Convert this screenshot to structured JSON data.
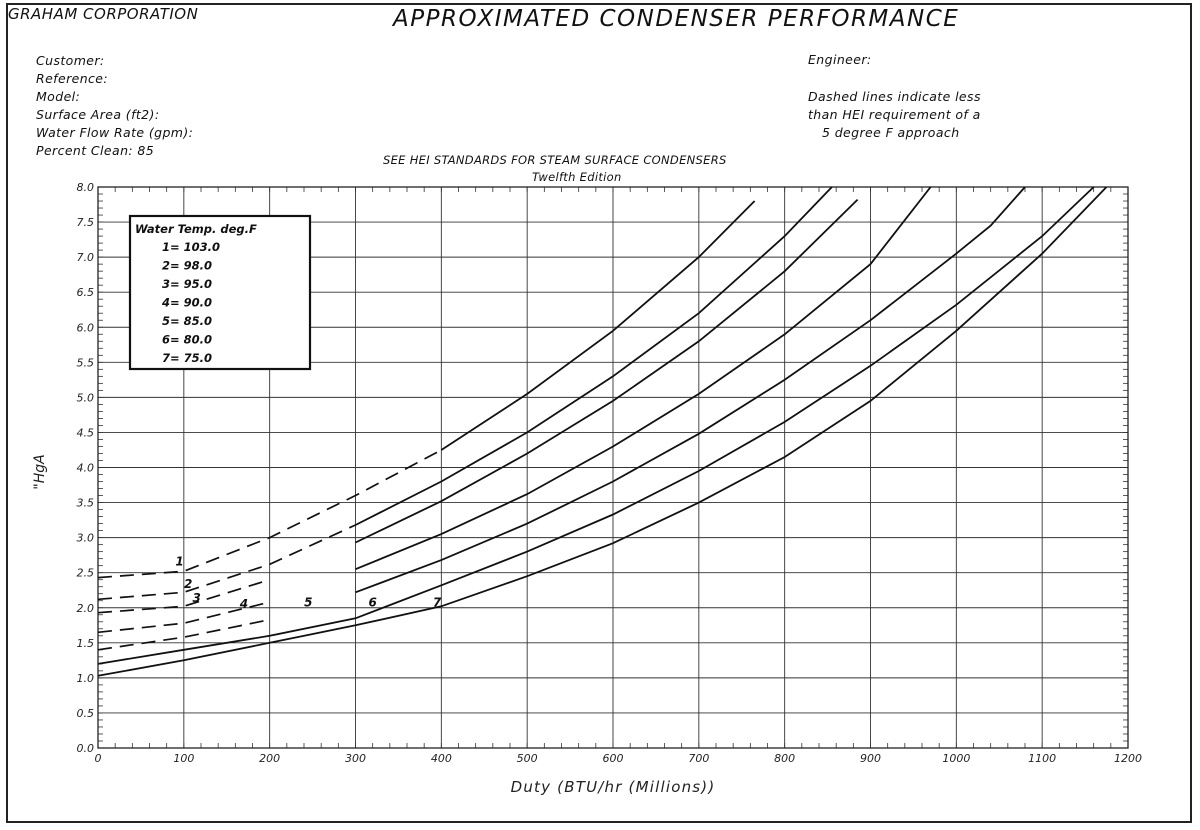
{
  "header": {
    "company": "GRAHAM CORPORATION",
    "title": "APPROXIMATED CONDENSER PERFORMANCE",
    "info_left": [
      "Customer:",
      "Reference:",
      "Model:",
      "Surface Area (ft2):",
      "Water Flow Rate (gpm):",
      "Percent Clean: 85"
    ],
    "engineer": "Engineer:",
    "note_lines": [
      "Dashed lines indicate less",
      "than HEI requirement of a",
      "5 degree F approach"
    ],
    "hei_line1": "SEE HEI STANDARDS FOR STEAM SURFACE CONDENSERS",
    "hei_line2": "Twelfth Edition"
  },
  "chart_data": {
    "type": "line",
    "title": "APPROXIMATED CONDENSER PERFORMANCE",
    "subtitle": "SEE HEI STANDARDS FOR STEAM SURFACE CONDENSERS Twelfth Edition",
    "xlabel": "Duty (BTU/hr (Millions))",
    "ylabel": "\"HgA",
    "xlim": [
      0,
      1200
    ],
    "ylim": [
      0,
      8
    ],
    "x_ticks": [
      "0",
      "100",
      "200",
      "300",
      "400",
      "500",
      "600",
      "700",
      "800",
      "900",
      "1000",
      "1100",
      "1200"
    ],
    "y_ticks": [
      "0.0",
      "0.5",
      "1.0",
      "1.5",
      "2.0",
      "2.5",
      "3.0",
      "3.5",
      "4.0",
      "4.5",
      "5.0",
      "5.5",
      "6.0",
      "6.5",
      "7.0",
      "7.5",
      "8.0"
    ],
    "grid": true,
    "legend": {
      "title": "Water Temp. deg.F",
      "placement": "top-left",
      "entries": [
        "1= 103.0",
        "2= 98.0",
        "3= 95.0",
        "4= 90.0",
        "5= 85.0",
        "6= 80.0",
        "7= 75.0"
      ]
    },
    "series": [
      {
        "label": "1",
        "water_temp_F": 103.0,
        "dashed_until_x": 400,
        "points": [
          [
            0,
            2.43
          ],
          [
            100,
            2.52
          ],
          [
            200,
            3.0
          ],
          [
            300,
            3.6
          ],
          [
            400,
            4.25
          ],
          [
            500,
            5.05
          ],
          [
            600,
            5.95
          ],
          [
            700,
            7.0
          ],
          [
            765,
            7.8
          ]
        ]
      },
      {
        "label": "2",
        "water_temp_F": 98.0,
        "dashed_until_x": 300,
        "points": [
          [
            0,
            2.12
          ],
          [
            100,
            2.22
          ],
          [
            200,
            2.62
          ],
          [
            300,
            3.18
          ],
          [
            400,
            3.8
          ],
          [
            500,
            4.5
          ],
          [
            600,
            5.3
          ],
          [
            700,
            6.2
          ],
          [
            800,
            7.3
          ],
          [
            855,
            8.0
          ]
        ]
      },
      {
        "label": "3",
        "water_temp_F": 95.0,
        "dashed_until_x": 260,
        "points": [
          [
            0,
            1.93
          ],
          [
            100,
            2.02
          ],
          [
            200,
            2.4
          ],
          [
            300,
            2.93
          ],
          [
            400,
            3.52
          ],
          [
            500,
            4.2
          ],
          [
            600,
            4.95
          ],
          [
            700,
            5.8
          ],
          [
            800,
            6.8
          ],
          [
            885,
            7.82
          ]
        ]
      },
      {
        "label": "4",
        "water_temp_F": 90.0,
        "dashed_until_x": 240,
        "points": [
          [
            0,
            1.65
          ],
          [
            100,
            1.78
          ],
          [
            200,
            2.08
          ],
          [
            300,
            2.55
          ],
          [
            400,
            3.05
          ],
          [
            500,
            3.62
          ],
          [
            600,
            4.3
          ],
          [
            700,
            5.05
          ],
          [
            800,
            5.9
          ],
          [
            900,
            6.9
          ],
          [
            970,
            8.0
          ]
        ]
      },
      {
        "label": "5",
        "water_temp_F": 85.0,
        "dashed_until_x": 245,
        "points": [
          [
            0,
            1.4
          ],
          [
            100,
            1.58
          ],
          [
            200,
            1.83
          ],
          [
            300,
            2.22
          ],
          [
            400,
            2.68
          ],
          [
            500,
            3.2
          ],
          [
            600,
            3.8
          ],
          [
            700,
            4.48
          ],
          [
            800,
            5.25
          ],
          [
            900,
            6.1
          ],
          [
            1000,
            7.05
          ],
          [
            1040,
            7.45
          ],
          [
            1080,
            8.0
          ]
        ]
      },
      {
        "label": "6",
        "water_temp_F": 80.0,
        "dashed_until_x": 0,
        "points": [
          [
            0,
            1.2
          ],
          [
            100,
            1.4
          ],
          [
            200,
            1.6
          ],
          [
            300,
            1.85
          ],
          [
            400,
            2.32
          ],
          [
            500,
            2.8
          ],
          [
            600,
            3.33
          ],
          [
            700,
            3.95
          ],
          [
            800,
            4.65
          ],
          [
            900,
            5.45
          ],
          [
            1000,
            6.32
          ],
          [
            1100,
            7.3
          ],
          [
            1160,
            8.0
          ]
        ]
      },
      {
        "label": "7",
        "water_temp_F": 75.0,
        "dashed_until_x": 0,
        "points": [
          [
            0,
            1.03
          ],
          [
            100,
            1.25
          ],
          [
            200,
            1.5
          ],
          [
            300,
            1.75
          ],
          [
            400,
            2.02
          ],
          [
            500,
            2.45
          ],
          [
            600,
            2.92
          ],
          [
            700,
            3.5
          ],
          [
            800,
            4.15
          ],
          [
            900,
            4.95
          ],
          [
            1000,
            5.95
          ],
          [
            1100,
            7.05
          ],
          [
            1175,
            8.0
          ]
        ]
      }
    ],
    "curve_labels": [
      {
        "label": "1",
        "x": 95,
        "y": 2.6
      },
      {
        "label": "2",
        "x": 105,
        "y": 2.28
      },
      {
        "label": "3",
        "x": 115,
        "y": 2.08
      },
      {
        "label": "4",
        "x": 170,
        "y": 2.0
      },
      {
        "label": "5",
        "x": 245,
        "y": 2.02
      },
      {
        "label": "6",
        "x": 320,
        "y": 2.02
      },
      {
        "label": "7",
        "x": 395,
        "y": 2.02
      }
    ]
  }
}
